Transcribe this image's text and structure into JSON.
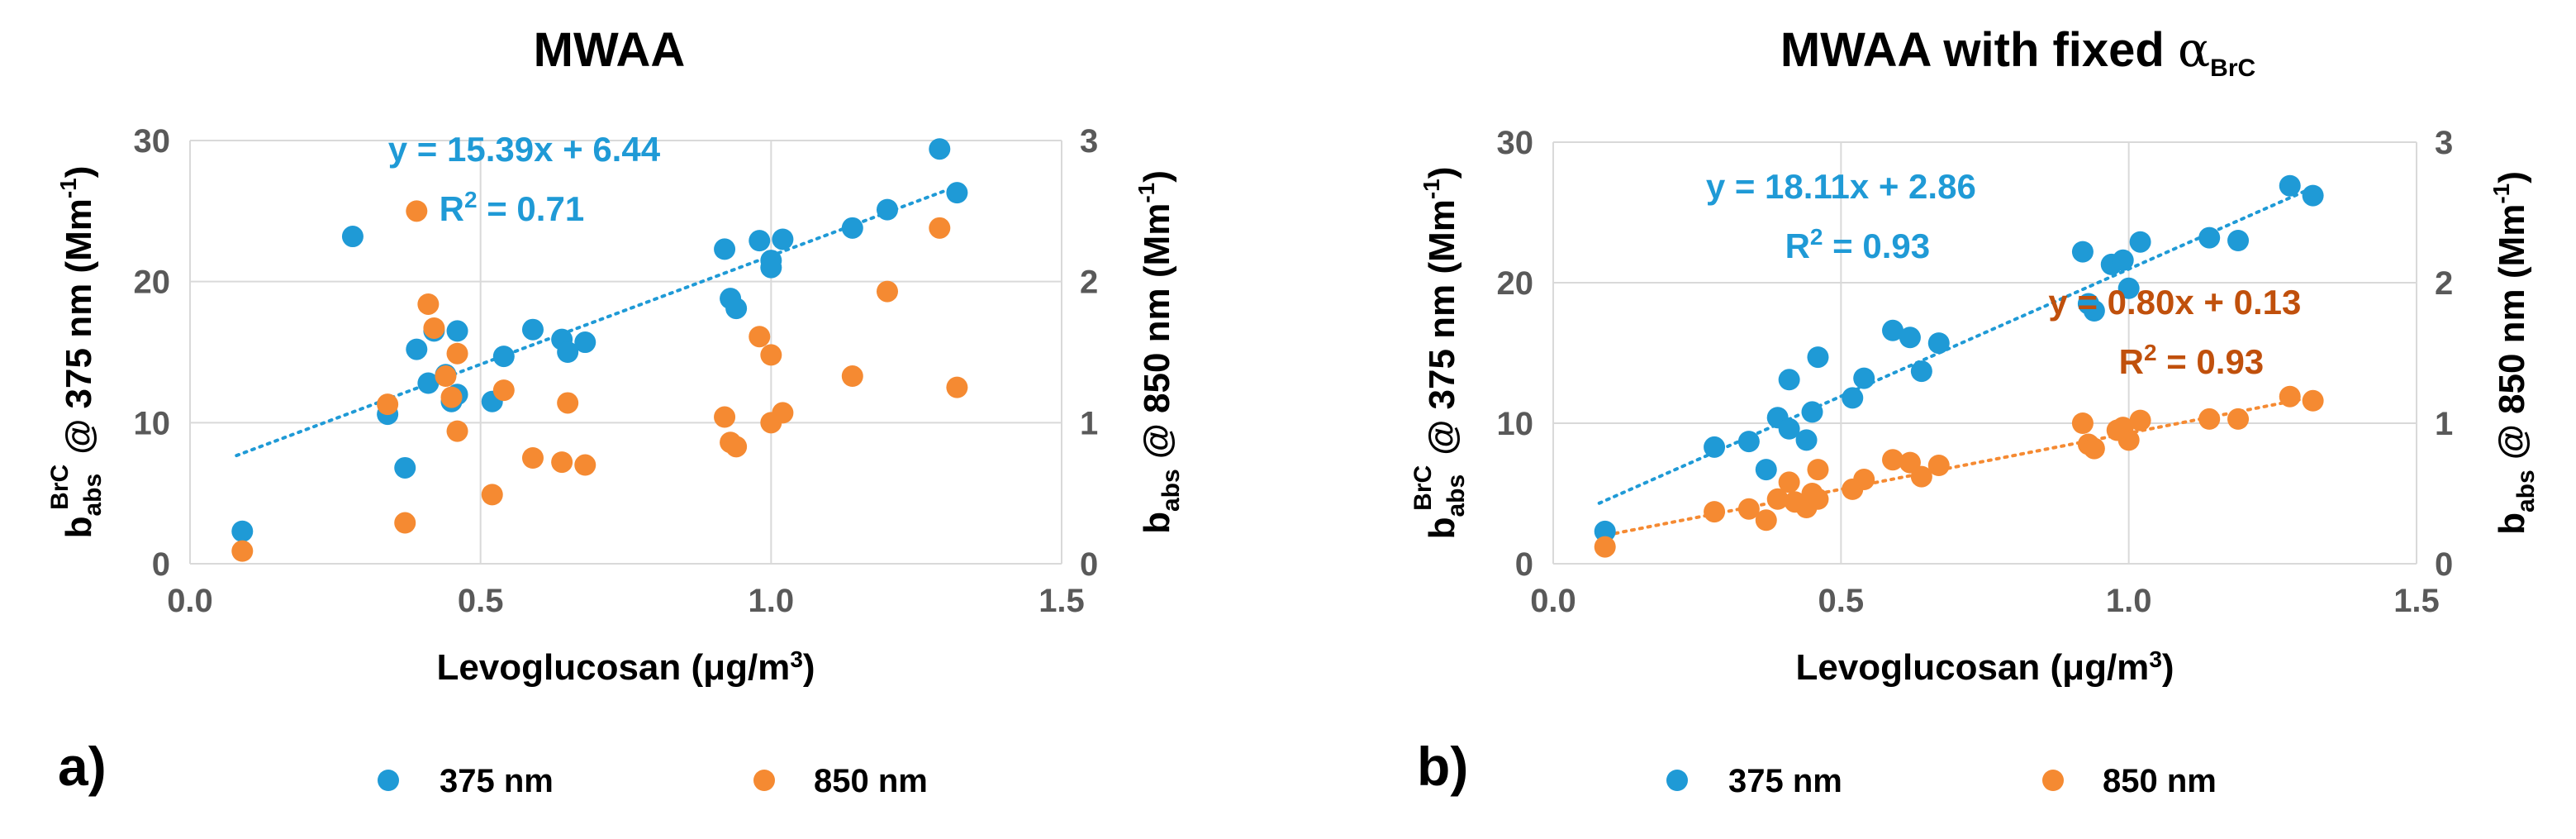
{
  "colors": {
    "blue": "#1f9ad6",
    "orange": "#f58a32",
    "eq_orange": "#c0500c",
    "grid": "#d9d9d9",
    "axis_text": "#595959"
  },
  "chart_data": [
    {
      "type": "scatter",
      "panel_label": "a)",
      "title": "MWAA",
      "xlabel": "Levoglucosan (μg/m³)",
      "ylabel_left": "b_abs^BrC @ 375 nm (Mm⁻¹)",
      "ylabel_right": "b_abs @ 850 nm (Mm⁻¹)",
      "xlim": [
        0,
        1.5
      ],
      "ylim_left": [
        0,
        30
      ],
      "ylim_right": [
        0,
        3
      ],
      "xticks": [
        "0.0",
        "0.5",
        "1.0",
        "1.5"
      ],
      "yticks_left": [
        "0",
        "10",
        "20",
        "30"
      ],
      "yticks_right": [
        "0",
        "1",
        "2",
        "3"
      ],
      "grid": true,
      "legend": [
        "375 nm",
        "850 nm"
      ],
      "series": [
        {
          "name": "375 nm",
          "axis": "left",
          "x": [
            0.09,
            0.28,
            0.34,
            0.37,
            0.39,
            0.41,
            0.42,
            0.44,
            0.45,
            0.46,
            0.46,
            0.52,
            0.54,
            0.59,
            0.64,
            0.65,
            0.68,
            0.92,
            0.93,
            0.94,
            0.98,
            1.0,
            1.0,
            1.02,
            1.14,
            1.2,
            1.29,
            1.32
          ],
          "y": [
            2.3,
            23.2,
            10.6,
            6.8,
            15.2,
            12.8,
            16.5,
            13.4,
            11.5,
            16.5,
            12.0,
            11.5,
            14.7,
            16.6,
            15.9,
            15.0,
            15.7,
            22.3,
            18.8,
            18.1,
            22.9,
            21.5,
            21.0,
            23.0,
            23.8,
            25.1,
            29.4,
            26.3
          ]
        },
        {
          "name": "850 nm",
          "axis": "right",
          "x": [
            0.09,
            0.34,
            0.37,
            0.39,
            0.41,
            0.42,
            0.44,
            0.45,
            0.46,
            0.46,
            0.52,
            0.54,
            0.59,
            0.64,
            0.65,
            0.68,
            0.92,
            0.93,
            0.94,
            0.98,
            1.0,
            1.0,
            1.02,
            1.14,
            1.2,
            1.29,
            1.32
          ],
          "y": [
            0.09,
            1.13,
            0.29,
            2.5,
            1.84,
            1.67,
            1.33,
            1.18,
            0.94,
            1.49,
            0.49,
            1.23,
            0.75,
            0.72,
            1.14,
            0.7,
            1.04,
            0.86,
            0.83,
            1.61,
            1.0,
            1.48,
            1.07,
            1.33,
            1.93,
            2.38,
            1.25
          ]
        }
      ],
      "fits": [
        {
          "series": "375 nm",
          "slope": 15.39,
          "intercept": 6.44,
          "equation": "y = 15.39x + 6.44",
          "r2_label": "R² = 0.71"
        }
      ]
    },
    {
      "type": "scatter",
      "panel_label": "b)",
      "title": "MWAA with fixed ",
      "title_symbol": "α",
      "title_sub": "BrC",
      "xlabel": "Levoglucosan (μg/m³)",
      "ylabel_left": "b_abs^BrC @ 375 nm (Mm⁻¹)",
      "ylabel_right": "b_abs @ 850 nm (Mm⁻¹)",
      "xlim": [
        0,
        1.5
      ],
      "ylim_left": [
        0,
        30
      ],
      "ylim_right": [
        0,
        3
      ],
      "xticks": [
        "0.0",
        "0.5",
        "1.0",
        "1.5"
      ],
      "yticks_left": [
        "0",
        "10",
        "20",
        "30"
      ],
      "yticks_right": [
        "0",
        "1",
        "2",
        "3"
      ],
      "grid": true,
      "legend": [
        "375 nm",
        "850 nm"
      ],
      "series": [
        {
          "name": "375 nm",
          "axis": "left",
          "x": [
            0.09,
            0.28,
            0.34,
            0.37,
            0.39,
            0.41,
            0.41,
            0.44,
            0.45,
            0.46,
            0.52,
            0.54,
            0.59,
            0.62,
            0.64,
            0.67,
            0.92,
            0.93,
            0.94,
            0.97,
            0.99,
            1.0,
            1.02,
            1.14,
            1.19,
            1.28,
            1.32
          ],
          "y": [
            2.3,
            8.3,
            8.7,
            6.7,
            10.4,
            9.6,
            13.1,
            8.8,
            10.8,
            14.7,
            11.8,
            13.2,
            16.6,
            16.1,
            13.7,
            15.7,
            22.2,
            18.5,
            18.0,
            21.3,
            21.6,
            19.6,
            22.9,
            23.2,
            23.0,
            26.9,
            26.2
          ]
        },
        {
          "name": "850 nm",
          "axis": "right",
          "x": [
            0.09,
            0.28,
            0.34,
            0.37,
            0.39,
            0.41,
            0.42,
            0.44,
            0.45,
            0.46,
            0.46,
            0.52,
            0.54,
            0.59,
            0.62,
            0.64,
            0.67,
            0.92,
            0.93,
            0.94,
            0.98,
            0.99,
            1.0,
            1.02,
            1.14,
            1.19,
            1.28,
            1.32
          ],
          "y": [
            0.12,
            0.37,
            0.39,
            0.31,
            0.46,
            0.58,
            0.44,
            0.4,
            0.5,
            0.46,
            0.67,
            0.53,
            0.6,
            0.74,
            0.72,
            0.62,
            0.7,
            1.0,
            0.85,
            0.82,
            0.95,
            0.97,
            0.88,
            1.02,
            1.03,
            1.03,
            1.19,
            1.16
          ]
        }
      ],
      "fits": [
        {
          "series": "375 nm",
          "slope": 18.11,
          "intercept": 2.86,
          "equation": "y = 18.11x + 2.86",
          "r2_label": "R² = 0.93"
        },
        {
          "series": "850 nm",
          "slope": 0.8,
          "intercept": 0.13,
          "equation": "y = 0.80x + 0.13",
          "r2_label": "R² = 0.93"
        }
      ]
    }
  ]
}
